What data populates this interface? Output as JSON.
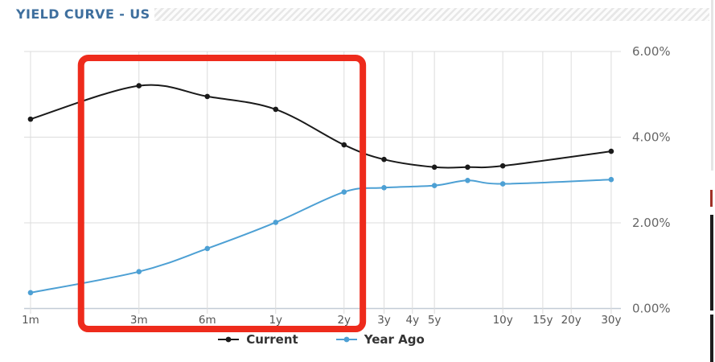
{
  "header": {
    "title": "YIELD CURVE - US"
  },
  "colors": {
    "title_blue": "#3e6f9e",
    "annotation_red": "#ee2b1c",
    "gridline": "#dcdcdc",
    "baseline": "#c2ccd6",
    "axis_label": "#666666"
  },
  "chart_data": {
    "type": "line",
    "title": "YIELD CURVE - US",
    "x_scale": "log",
    "grid": true,
    "legend_position": "bottom",
    "ylim": [
      0,
      6
    ],
    "y_ticks": [
      {
        "label": "0.00%",
        "value": 0
      },
      {
        "label": "2.00%",
        "value": 2
      },
      {
        "label": "4.00%",
        "value": 4
      },
      {
        "label": "6.00%",
        "value": 6
      }
    ],
    "x_ticks": [
      {
        "label": "1m",
        "years": 0.0833
      },
      {
        "label": "3m",
        "years": 0.25
      },
      {
        "label": "6m",
        "years": 0.5
      },
      {
        "label": "1y",
        "years": 1
      },
      {
        "label": "2y",
        "years": 2
      },
      {
        "label": "3y",
        "years": 3
      },
      {
        "label": "4y",
        "years": 4
      },
      {
        "label": "5y",
        "years": 5
      },
      {
        "label": "10y",
        "years": 10
      },
      {
        "label": "15y",
        "years": 15
      },
      {
        "label": "20y",
        "years": 20
      },
      {
        "label": "30y",
        "years": 30
      }
    ],
    "series": [
      {
        "name": "Current",
        "color": "#1a1a1a",
        "x_years": [
          0.0833,
          0.25,
          0.5,
          1,
          2,
          3,
          5,
          7,
          10,
          30
        ],
        "values": [
          4.42,
          5.2,
          4.95,
          4.65,
          3.82,
          3.48,
          3.3,
          3.3,
          3.33,
          3.67
        ]
      },
      {
        "name": "Year Ago",
        "color": "#4da0d4",
        "x_years": [
          0.0833,
          0.25,
          0.5,
          1,
          2,
          3,
          5,
          7,
          10,
          30
        ],
        "values": [
          0.37,
          0.86,
          1.4,
          2.01,
          2.72,
          2.82,
          2.87,
          2.99,
          2.91,
          3.01
        ]
      }
    ],
    "annotation": {
      "type": "rect",
      "color": "#ee2b1c",
      "stroke_width": 8,
      "x_year_range": [
        0.139,
        2.42
      ],
      "y_value_range": [
        -0.48,
        5.85
      ]
    }
  }
}
